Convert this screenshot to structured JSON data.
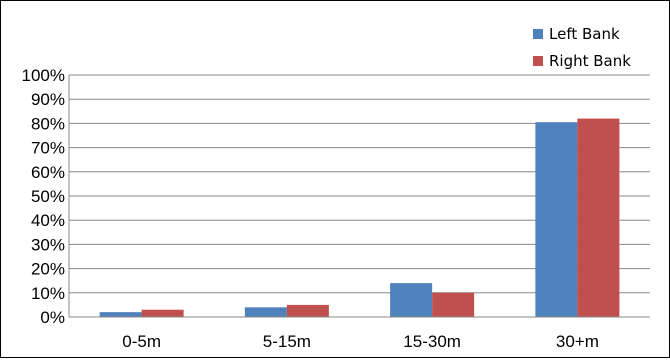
{
  "chart_data": {
    "type": "bar",
    "categories": [
      "0-5m",
      "5-15m",
      "15-30m",
      "30+m"
    ],
    "series": [
      {
        "name": "Left Bank",
        "color": "#4F81BD",
        "values": [
          2,
          4,
          14,
          80.5
        ]
      },
      {
        "name": "Right Bank",
        "color": "#C0504D",
        "values": [
          3,
          5,
          10,
          82
        ]
      }
    ],
    "yticks": [
      "0%",
      "10%",
      "20%",
      "30%",
      "40%",
      "50%",
      "60%",
      "70%",
      "80%",
      "90%",
      "100%"
    ],
    "ylim": [
      0,
      100
    ],
    "grid": true,
    "legend_position": "top-right"
  }
}
